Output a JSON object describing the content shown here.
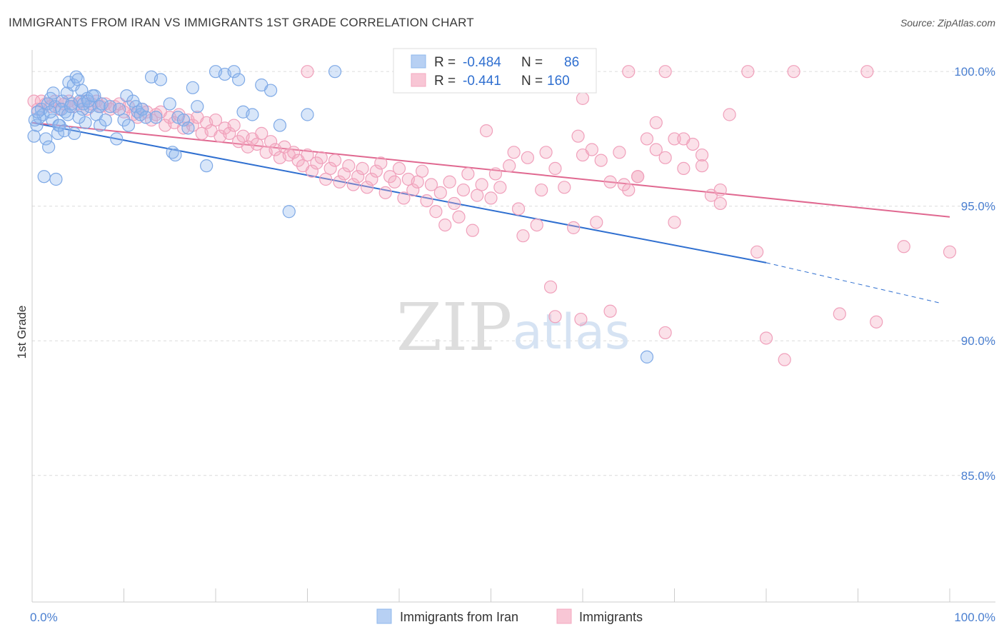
{
  "title": "IMMIGRANTS FROM IRAN VS IMMIGRANTS 1ST GRADE CORRELATION CHART",
  "source": "Source: ZipAtlas.com",
  "watermark": {
    "zip": "ZIP",
    "atlas": "atlas"
  },
  "legend": {
    "r_label": "R =",
    "n_label": "N =",
    "rows": [
      {
        "r": "-0.484",
        "n": "86"
      },
      {
        "r": "-0.441",
        "n": "160"
      }
    ]
  },
  "chart_data": {
    "type": "scatter",
    "title": "IMMIGRANTS FROM IRAN VS IMMIGRANTS 1ST GRADE CORRELATION CHART",
    "xlabel": "",
    "ylabel": "1st Grade",
    "xlim": [
      0,
      100
    ],
    "ylim": [
      80.3,
      100.8
    ],
    "x_tick_labels": [
      "0.0%",
      "100.0%"
    ],
    "y_ticks": [
      85,
      90,
      95,
      100
    ],
    "y_tick_labels": [
      "85.0%",
      "90.0%",
      "95.0%",
      "100.0%"
    ],
    "grid": true,
    "legend_position": "top-center",
    "colors": {
      "iran": "#8fb8ee",
      "iran_line": "#2f6fd0",
      "imm": "#f4a8c0",
      "imm_line": "#e06890"
    },
    "series": [
      {
        "name": "Immigrants from Iran",
        "color": "#8fb8ee",
        "trend": {
          "x": [
            0,
            80
          ],
          "y": [
            98.1,
            92.9
          ],
          "dashed_to": [
            99,
            91.4
          ]
        },
        "points": [
          [
            0.2,
            97.6
          ],
          [
            0.5,
            98.0
          ],
          [
            0.8,
            98.3
          ],
          [
            1.0,
            98.6
          ],
          [
            1.2,
            98.4
          ],
          [
            1.5,
            97.5
          ],
          [
            1.7,
            98.8
          ],
          [
            2.0,
            99.0
          ],
          [
            2.2,
            98.2
          ],
          [
            2.5,
            98.7
          ],
          [
            2.8,
            97.7
          ],
          [
            3.0,
            98.0
          ],
          [
            3.3,
            98.9
          ],
          [
            3.6,
            98.5
          ],
          [
            3.8,
            99.2
          ],
          [
            4.0,
            99.6
          ],
          [
            4.3,
            98.8
          ],
          [
            4.5,
            99.5
          ],
          [
            4.8,
            99.8
          ],
          [
            5.0,
            99.7
          ],
          [
            5.2,
            98.9
          ],
          [
            5.5,
            98.6
          ],
          [
            5.8,
            98.1
          ],
          [
            6.0,
            99.0
          ],
          [
            6.3,
            98.7
          ],
          [
            6.8,
            99.1
          ],
          [
            7.0,
            98.4
          ],
          [
            7.3,
            98.7
          ],
          [
            0.3,
            98.2
          ],
          [
            0.6,
            98.5
          ],
          [
            1.3,
            96.1
          ],
          [
            1.8,
            97.2
          ],
          [
            2.0,
            98.5
          ],
          [
            2.3,
            99.2
          ],
          [
            2.6,
            96.0
          ],
          [
            2.9,
            98.0
          ],
          [
            3.2,
            98.6
          ],
          [
            3.5,
            97.8
          ],
          [
            3.9,
            98.4
          ],
          [
            4.2,
            98.7
          ],
          [
            4.6,
            97.7
          ],
          [
            5.1,
            98.3
          ],
          [
            5.4,
            99.3
          ],
          [
            5.6,
            98.8
          ],
          [
            6.1,
            98.9
          ],
          [
            6.6,
            99.1
          ],
          [
            7.4,
            98.0
          ],
          [
            7.6,
            98.8
          ],
          [
            8.0,
            98.2
          ],
          [
            8.5,
            98.7
          ],
          [
            9.2,
            97.5
          ],
          [
            9.5,
            98.6
          ],
          [
            10.0,
            98.2
          ],
          [
            10.3,
            99.1
          ],
          [
            10.5,
            98.0
          ],
          [
            11.0,
            98.9
          ],
          [
            11.3,
            98.7
          ],
          [
            11.5,
            98.5
          ],
          [
            11.8,
            98.4
          ],
          [
            12.0,
            98.6
          ],
          [
            12.4,
            98.3
          ],
          [
            13.0,
            99.8
          ],
          [
            13.5,
            98.3
          ],
          [
            14.0,
            99.7
          ],
          [
            15.0,
            98.8
          ],
          [
            15.3,
            97.0
          ],
          [
            15.6,
            96.9
          ],
          [
            15.9,
            98.3
          ],
          [
            16.5,
            98.2
          ],
          [
            17.0,
            97.9
          ],
          [
            17.5,
            99.4
          ],
          [
            18.0,
            98.7
          ],
          [
            19.0,
            96.5
          ],
          [
            20.0,
            100.0
          ],
          [
            21.0,
            99.9
          ],
          [
            22.0,
            100.0
          ],
          [
            22.5,
            99.7
          ],
          [
            23.0,
            98.5
          ],
          [
            24.0,
            98.4
          ],
          [
            25.0,
            99.5
          ],
          [
            26.0,
            99.3
          ],
          [
            27.0,
            98.0
          ],
          [
            28.0,
            94.8
          ],
          [
            30.0,
            98.4
          ],
          [
            33.0,
            100.0
          ],
          [
            67.0,
            89.4
          ]
        ]
      },
      {
        "name": "Immigrants",
        "color": "#f4a8c0",
        "trend": {
          "x": [
            0,
            100
          ],
          "y": [
            98.1,
            94.6
          ]
        },
        "points": [
          [
            0.2,
            98.9
          ],
          [
            0.6,
            98.6
          ],
          [
            1.0,
            98.9
          ],
          [
            1.5,
            98.8
          ],
          [
            2.0,
            98.7
          ],
          [
            2.5,
            98.9
          ],
          [
            3.0,
            98.6
          ],
          [
            3.5,
            98.8
          ],
          [
            4.0,
            98.9
          ],
          [
            4.5,
            98.7
          ],
          [
            5.0,
            98.8
          ],
          [
            5.5,
            98.9
          ],
          [
            6.0,
            98.6
          ],
          [
            6.5,
            98.8
          ],
          [
            7.0,
            98.9
          ],
          [
            7.5,
            98.7
          ],
          [
            8.0,
            98.8
          ],
          [
            8.5,
            98.6
          ],
          [
            9.0,
            98.7
          ],
          [
            9.5,
            98.8
          ],
          [
            10.0,
            98.5
          ],
          [
            10.5,
            98.7
          ],
          [
            11.0,
            98.4
          ],
          [
            11.5,
            98.3
          ],
          [
            12.0,
            98.6
          ],
          [
            12.5,
            98.5
          ],
          [
            13.0,
            98.2
          ],
          [
            13.5,
            98.4
          ],
          [
            14.0,
            98.5
          ],
          [
            14.5,
            98.0
          ],
          [
            15.0,
            98.3
          ],
          [
            15.5,
            98.1
          ],
          [
            16.0,
            98.4
          ],
          [
            16.5,
            97.9
          ],
          [
            17.0,
            98.2
          ],
          [
            17.5,
            98.0
          ],
          [
            18.0,
            98.3
          ],
          [
            18.5,
            97.7
          ],
          [
            19.0,
            98.1
          ],
          [
            19.5,
            97.8
          ],
          [
            20.0,
            98.2
          ],
          [
            20.5,
            97.6
          ],
          [
            21.0,
            97.9
          ],
          [
            21.5,
            97.7
          ],
          [
            22.0,
            98.0
          ],
          [
            22.5,
            97.4
          ],
          [
            23.0,
            97.6
          ],
          [
            23.5,
            97.2
          ],
          [
            24.0,
            97.5
          ],
          [
            24.5,
            97.3
          ],
          [
            25.0,
            97.7
          ],
          [
            25.5,
            97.0
          ],
          [
            26.0,
            97.4
          ],
          [
            26.5,
            97.1
          ],
          [
            27.0,
            96.8
          ],
          [
            27.5,
            97.2
          ],
          [
            28.0,
            96.9
          ],
          [
            28.5,
            97.0
          ],
          [
            29.0,
            96.7
          ],
          [
            29.5,
            96.5
          ],
          [
            30.0,
            96.9
          ],
          [
            30.5,
            96.3
          ],
          [
            31.0,
            96.6
          ],
          [
            31.5,
            96.8
          ],
          [
            32.0,
            96.0
          ],
          [
            32.5,
            96.4
          ],
          [
            33.0,
            96.7
          ],
          [
            33.5,
            95.9
          ],
          [
            34.0,
            96.2
          ],
          [
            34.5,
            96.5
          ],
          [
            35.0,
            95.8
          ],
          [
            35.5,
            96.1
          ],
          [
            36.0,
            96.4
          ],
          [
            36.5,
            95.7
          ],
          [
            37.0,
            96.0
          ],
          [
            37.5,
            96.3
          ],
          [
            38.0,
            96.6
          ],
          [
            38.5,
            95.5
          ],
          [
            39.0,
            96.1
          ],
          [
            39.5,
            95.9
          ],
          [
            40.0,
            96.4
          ],
          [
            40.5,
            95.3
          ],
          [
            41.0,
            96.0
          ],
          [
            41.5,
            95.6
          ],
          [
            42.0,
            95.9
          ],
          [
            42.5,
            96.3
          ],
          [
            43.0,
            95.2
          ],
          [
            43.5,
            95.8
          ],
          [
            44.0,
            94.8
          ],
          [
            44.5,
            95.5
          ],
          [
            45.0,
            94.3
          ],
          [
            45.5,
            95.9
          ],
          [
            46.0,
            95.1
          ],
          [
            46.5,
            94.6
          ],
          [
            47.0,
            95.6
          ],
          [
            47.5,
            96.2
          ],
          [
            48.0,
            94.1
          ],
          [
            48.5,
            95.4
          ],
          [
            49.0,
            95.8
          ],
          [
            49.5,
            97.8
          ],
          [
            50.0,
            95.3
          ],
          [
            50.5,
            96.2
          ],
          [
            51.0,
            95.7
          ],
          [
            52.0,
            96.5
          ],
          [
            53.0,
            94.9
          ],
          [
            53.5,
            93.9
          ],
          [
            54.0,
            96.8
          ],
          [
            55.0,
            94.3
          ],
          [
            55.5,
            95.6
          ],
          [
            56.0,
            97.0
          ],
          [
            57.0,
            96.4
          ],
          [
            58.0,
            95.7
          ],
          [
            59.0,
            94.2
          ],
          [
            59.5,
            97.6
          ],
          [
            60.0,
            96.9
          ],
          [
            61.0,
            97.1
          ],
          [
            62.0,
            96.7
          ],
          [
            63.0,
            95.9
          ],
          [
            64.0,
            97.0
          ],
          [
            65.0,
            95.6
          ],
          [
            66.0,
            96.1
          ],
          [
            67.0,
            97.5
          ],
          [
            68.0,
            97.1
          ],
          [
            69.0,
            96.8
          ],
          [
            70.0,
            97.5
          ],
          [
            71.0,
            96.4
          ],
          [
            72.0,
            97.3
          ],
          [
            73.0,
            96.9
          ],
          [
            74.0,
            95.4
          ],
          [
            75.0,
            95.6
          ],
          [
            76.0,
            98.4
          ],
          [
            30.0,
            100.0
          ],
          [
            50.0,
            99.8
          ],
          [
            60.0,
            99.0
          ],
          [
            65.0,
            100.0
          ],
          [
            69.0,
            100.0
          ],
          [
            78.0,
            100.0
          ],
          [
            83.0,
            100.0
          ],
          [
            91.0,
            100.0
          ],
          [
            57.0,
            90.9
          ],
          [
            63.0,
            91.1
          ],
          [
            69.0,
            90.3
          ],
          [
            80.0,
            90.1
          ],
          [
            82.0,
            89.3
          ],
          [
            88.0,
            91.0
          ],
          [
            92.0,
            90.7
          ],
          [
            95.0,
            93.5
          ],
          [
            100.0,
            93.3
          ],
          [
            79.0,
            93.3
          ],
          [
            70.0,
            94.4
          ],
          [
            66.0,
            96.1
          ],
          [
            68.0,
            98.1
          ],
          [
            71.0,
            97.5
          ],
          [
            73.0,
            96.5
          ],
          [
            75.0,
            95.1
          ],
          [
            64.5,
            95.8
          ],
          [
            61.5,
            94.4
          ],
          [
            52.5,
            97.0
          ],
          [
            56.5,
            92.0
          ],
          [
            59.8,
            90.8
          ]
        ]
      }
    ]
  }
}
